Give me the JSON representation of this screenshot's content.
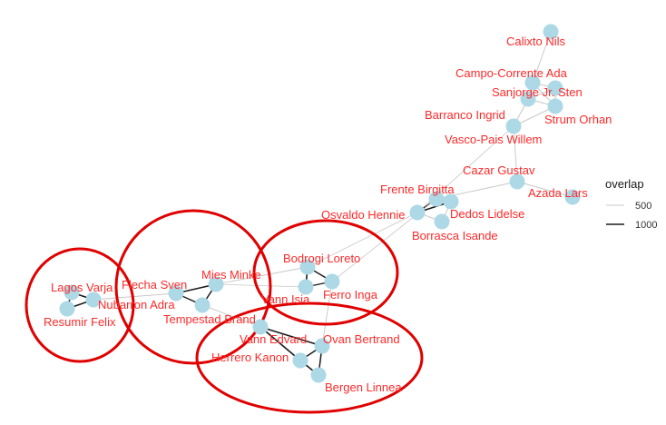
{
  "colors": {
    "node": "#add8e6",
    "label": "#ff2a2a",
    "edge_light": "#c8c8c8",
    "edge_dark": "#1a1a1a",
    "circle": "#e00000",
    "background": "#ffffff"
  },
  "legend": {
    "title": "overlap",
    "items": [
      {
        "label": "500",
        "weight": 500
      },
      {
        "label": "1000",
        "weight": 1000
      }
    ]
  },
  "nodes": [
    {
      "id": "calixto",
      "label": "Calixto Nils"
    },
    {
      "id": "campo",
      "label": "Campo-Corrente Ada"
    },
    {
      "id": "sanjorge",
      "label": "Sanjorge Jr. Sten"
    },
    {
      "id": "barranco",
      "label": "Barranco Ingrid"
    },
    {
      "id": "strum",
      "label": "Strum Orhan"
    },
    {
      "id": "vasco",
      "label": "Vasco-Pais Willem"
    },
    {
      "id": "cazar",
      "label": "Cazar Gustav"
    },
    {
      "id": "azada",
      "label": "Azada Lars"
    },
    {
      "id": "frente",
      "label": "Frente Birgitta"
    },
    {
      "id": "osvaldo",
      "label": "Osvaldo Hennie"
    },
    {
      "id": "dedos",
      "label": "Dedos Lidelse"
    },
    {
      "id": "borrasca",
      "label": "Borrasca Isande"
    },
    {
      "id": "bodrogi",
      "label": "Bodrogi Loreto"
    },
    {
      "id": "vannisia",
      "label": "Vann Isia"
    },
    {
      "id": "ferro",
      "label": "Ferro Inga"
    },
    {
      "id": "mies",
      "label": "Mies Minke"
    },
    {
      "id": "flecha",
      "label": "Flecha Sven"
    },
    {
      "id": "tempestad",
      "label": "Tempestad Brand"
    },
    {
      "id": "nubarron",
      "label": "Nubarron Adra"
    },
    {
      "id": "lagos",
      "label": "Lagos Varja"
    },
    {
      "id": "resumir",
      "label": "Resumir Felix"
    },
    {
      "id": "vannedvard",
      "label": "Vann Edvard"
    },
    {
      "id": "ovan",
      "label": "Ovan Bertrand"
    },
    {
      "id": "herrero",
      "label": "Herrero Kanon"
    },
    {
      "id": "bergen",
      "label": "Bergen Linnea"
    }
  ],
  "edges": [
    {
      "source": "calixto",
      "target": "campo",
      "weight": 400
    },
    {
      "source": "campo",
      "target": "sanjorge",
      "weight": 500
    },
    {
      "source": "campo",
      "target": "barranco",
      "weight": 400
    },
    {
      "source": "sanjorge",
      "target": "barranco",
      "weight": 600
    },
    {
      "source": "sanjorge",
      "target": "strum",
      "weight": 600
    },
    {
      "source": "barranco",
      "target": "strum",
      "weight": 500
    },
    {
      "source": "campo",
      "target": "strum",
      "weight": 400
    },
    {
      "source": "barranco",
      "target": "vasco",
      "weight": 500
    },
    {
      "source": "strum",
      "target": "vasco",
      "weight": 500
    },
    {
      "source": "vasco",
      "target": "cazar",
      "weight": 400
    },
    {
      "source": "cazar",
      "target": "azada",
      "weight": 400
    },
    {
      "source": "cazar",
      "target": "frente",
      "weight": 400
    },
    {
      "source": "vasco",
      "target": "osvaldo",
      "weight": 300
    },
    {
      "source": "frente",
      "target": "osvaldo",
      "weight": 700
    },
    {
      "source": "frente",
      "target": "dedos",
      "weight": 600
    },
    {
      "source": "osvaldo",
      "target": "dedos",
      "weight": 900
    },
    {
      "source": "osvaldo",
      "target": "borrasca",
      "weight": 600
    },
    {
      "source": "dedos",
      "target": "borrasca",
      "weight": 500
    },
    {
      "source": "osvaldo",
      "target": "bodrogi",
      "weight": 300
    },
    {
      "source": "frente",
      "target": "ferro",
      "weight": 300
    },
    {
      "source": "bodrogi",
      "target": "vannisia",
      "weight": 1000
    },
    {
      "source": "bodrogi",
      "target": "ferro",
      "weight": 900
    },
    {
      "source": "vannisia",
      "target": "ferro",
      "weight": 700
    },
    {
      "source": "bodrogi",
      "target": "mies",
      "weight": 400
    },
    {
      "source": "vannisia",
      "target": "mies",
      "weight": 300
    },
    {
      "source": "mies",
      "target": "flecha",
      "weight": 900
    },
    {
      "source": "mies",
      "target": "tempestad",
      "weight": 900
    },
    {
      "source": "flecha",
      "target": "tempestad",
      "weight": 900
    },
    {
      "source": "flecha",
      "target": "nubarron",
      "weight": 500
    },
    {
      "source": "tempestad",
      "target": "vannedvard",
      "weight": 400
    },
    {
      "source": "nubarron",
      "target": "lagos",
      "weight": 1000
    },
    {
      "source": "nubarron",
      "target": "resumir",
      "weight": 900
    },
    {
      "source": "lagos",
      "target": "resumir",
      "weight": 900
    },
    {
      "source": "ferro",
      "target": "ovan",
      "weight": 400
    },
    {
      "source": "ovan",
      "target": "vannedvard",
      "weight": 900
    },
    {
      "source": "ovan",
      "target": "herrero",
      "weight": 900
    },
    {
      "source": "vannedvard",
      "target": "herrero",
      "weight": 1000
    },
    {
      "source": "herrero",
      "target": "bergen",
      "weight": 1000
    },
    {
      "source": "ovan",
      "target": "bergen",
      "weight": 900
    }
  ]
}
